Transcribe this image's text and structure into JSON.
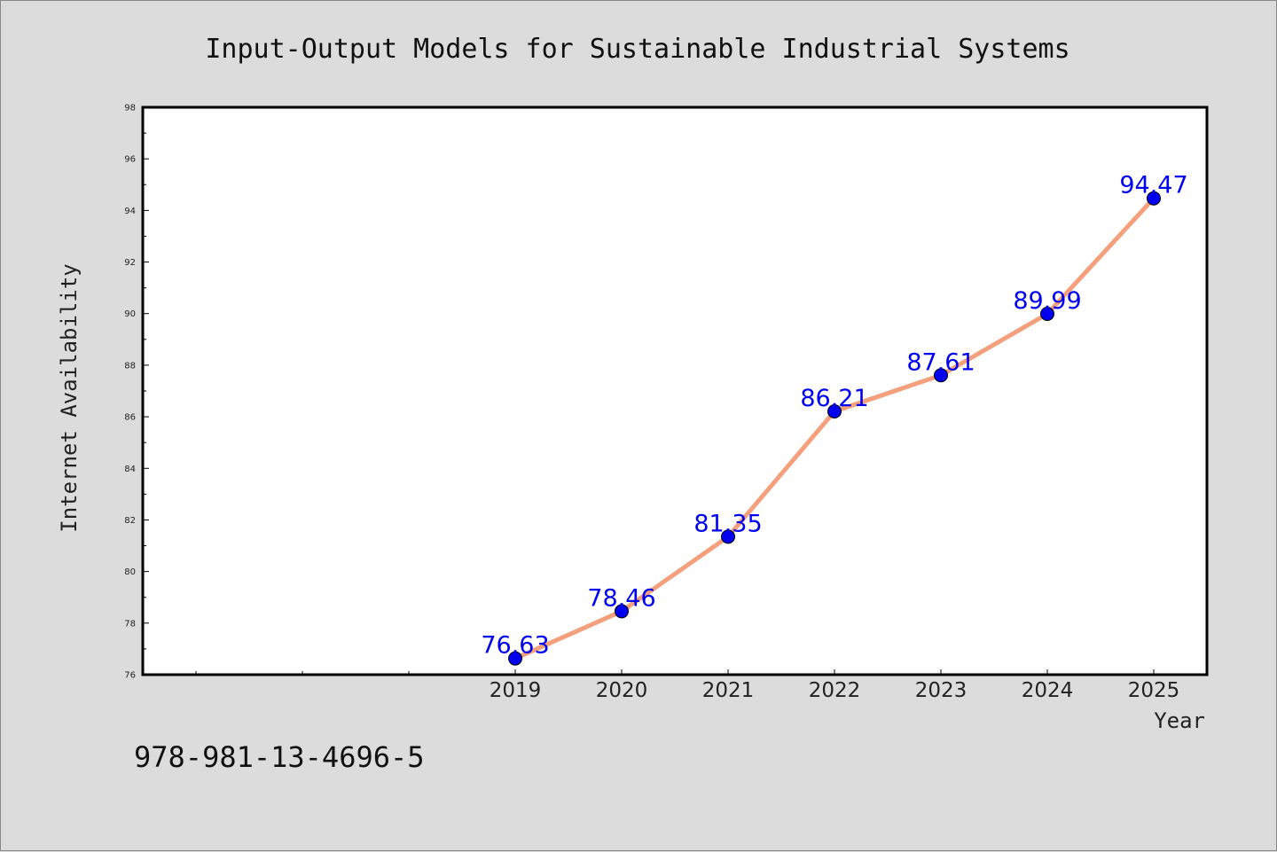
{
  "chart_data": {
    "type": "line",
    "title": "Input-Output Models for Sustainable Industrial Systems",
    "xlabel": "Year",
    "ylabel": "Internet Availability",
    "x": [
      "2019",
      "2020",
      "2021",
      "2022",
      "2023",
      "2024",
      "2025"
    ],
    "series": [
      {
        "values": [
          76.63,
          78.46,
          81.35,
          86.21,
          87.61,
          89.99,
          94.47
        ]
      }
    ],
    "data_labels": [
      "76.63",
      "78.46",
      "81.35",
      "86.21",
      "87.61",
      "89.99",
      "94.47"
    ],
    "ylim": [
      76,
      98
    ],
    "yticks": [
      "76",
      "78",
      "80",
      "82",
      "84",
      "86",
      "88",
      "90",
      "92",
      "94",
      "96",
      "98"
    ],
    "x_index_range": [
      -3.5,
      6.5
    ],
    "grid": false,
    "legend": "none",
    "colors": {
      "line": "#f4a07c",
      "marker": "#0000ee",
      "label": "#0000ee",
      "background": "#dcdcdc",
      "plot_background": "#ffffff"
    }
  },
  "footer": {
    "isbn": "978-981-13-4696-5"
  }
}
